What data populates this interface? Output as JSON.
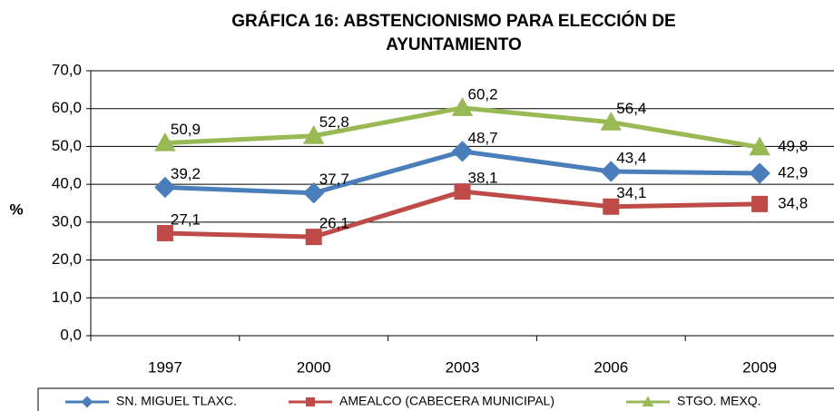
{
  "chart_data": {
    "type": "line",
    "title": [
      "GRÁFICA 16: ABSTENCIONISMO PARA ELECCIÓN DE",
      "AYUNTAMIENTO"
    ],
    "ylabel": "%",
    "categories": [
      "1997",
      "2000",
      "2003",
      "2006",
      "2009"
    ],
    "series": [
      {
        "name": "SN. MIGUEL TLAXC.",
        "color": "#4a7ebb",
        "marker": "diamond",
        "values": [
          39.2,
          37.7,
          48.7,
          43.4,
          42.9
        ],
        "value_labels": [
          "39,2",
          "37,7",
          "48,7",
          "43,4",
          "42,9"
        ]
      },
      {
        "name": "AMEALCO (CABECERA MUNICIPAL)",
        "color": "#be4b48",
        "marker": "square",
        "values": [
          27.1,
          26.1,
          38.1,
          34.1,
          34.8
        ],
        "value_labels": [
          "27,1",
          "26,1",
          "38,1",
          "34,1",
          "34,8"
        ]
      },
      {
        "name": "STGO. MEXQ.",
        "color": "#98b954",
        "marker": "triangle",
        "values": [
          50.9,
          52.8,
          60.2,
          56.4,
          49.8
        ],
        "value_labels": [
          "50,9",
          "52,8",
          "60,2",
          "56,4",
          "49,8"
        ]
      }
    ],
    "ylim": [
      0,
      70
    ],
    "yticks": [
      {
        "value": 0,
        "label": "0,0"
      },
      {
        "value": 10,
        "label": "10,0"
      },
      {
        "value": 20,
        "label": "20,0"
      },
      {
        "value": 30,
        "label": "30,0"
      },
      {
        "value": 40,
        "label": "40,0"
      },
      {
        "value": 50,
        "label": "50,0"
      },
      {
        "value": 60,
        "label": "60,0"
      },
      {
        "value": 70,
        "label": "70,0"
      }
    ],
    "grid": true,
    "legend": "bottom"
  }
}
